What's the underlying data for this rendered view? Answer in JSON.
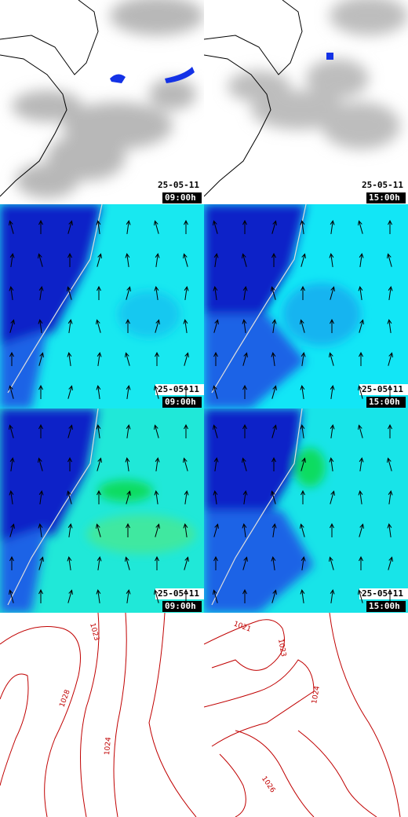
{
  "panels": [
    {
      "date": "25-05-11",
      "time": "09:00h"
    },
    {
      "date": "25-05-11",
      "time": "15:00h"
    },
    {
      "date": "25-05-11",
      "time": "09:00h"
    },
    {
      "date": "25-05-11",
      "time": "15:00h"
    },
    {
      "date": "25-05-11",
      "time": "09:00h"
    },
    {
      "date": "25-05-11",
      "time": "15:00h"
    },
    {
      "contour_labels": [
        "1023",
        "1028",
        "1024"
      ]
    },
    {
      "contour_labels": [
        "1021",
        "1023",
        "1024",
        "1026"
      ]
    }
  ]
}
